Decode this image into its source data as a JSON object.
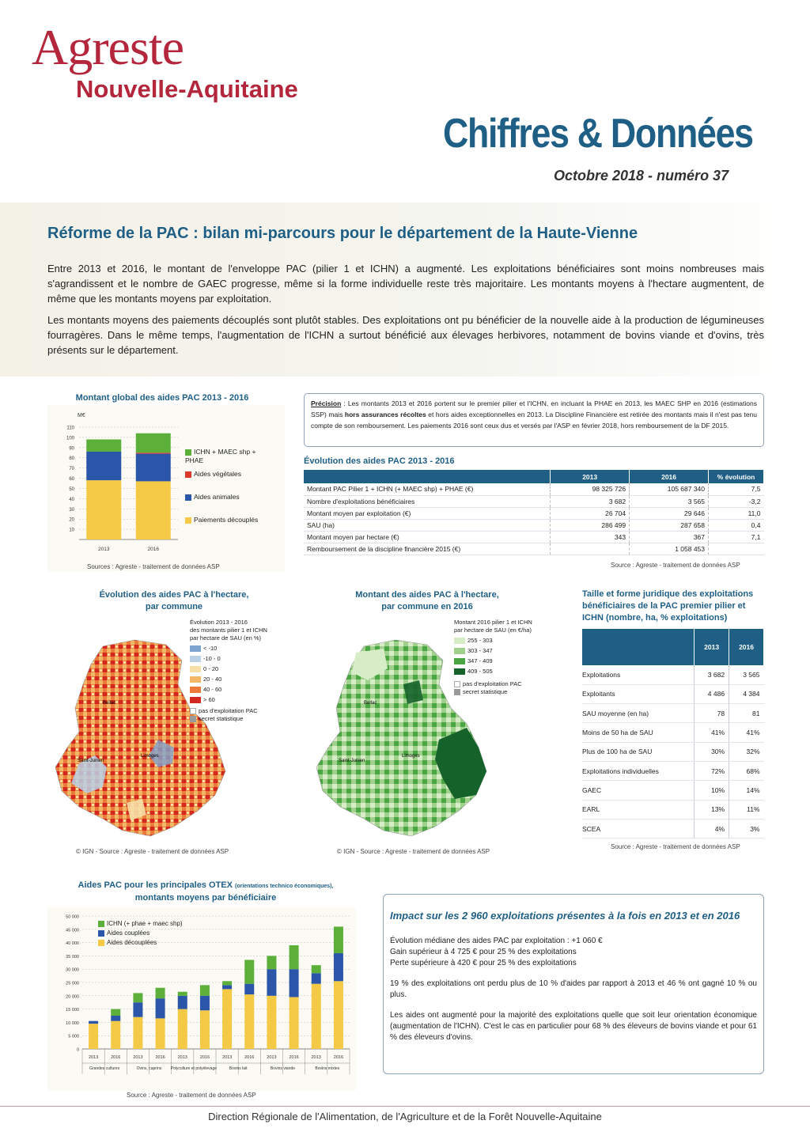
{
  "header": {
    "logo_text": "Agreste",
    "region": "Nouvelle-Aquitaine",
    "series": "Chiffres & Données",
    "issue": "Octobre 2018 - numéro 37"
  },
  "headline": "Réforme de la PAC : bilan mi-parcours pour le département de la Haute-Vienne",
  "intro": [
    "Entre 2013 et 2016, le montant de l'enveloppe PAC (pilier 1 et ICHN) a augmenté. Les exploitations bénéficiaires sont moins nombreuses mais s'agrandissent et le nombre de GAEC progresse, même si la forme individuelle reste très majoritaire. Les montants moyens à l'hectare augmentent, de même que les montants moyens par exploitation.",
    "Les montants moyens des paiements découplés sont plutôt stables. Des exploitations ont pu bénéficier de la nouvelle aide à la production de légumineuses fourragères. Dans le même temps, l'augmentation de l'ICHN a surtout bénéficié aux élevages herbivores, notamment de bovins viande et d'ovins, très présents sur le département."
  ],
  "chart_data": [
    {
      "type": "bar",
      "title": "Montant global des aides PAC 2013 - 2016",
      "ylabel": "M€",
      "ylim": [
        0,
        110
      ],
      "yticks": [
        "110",
        "100",
        "90",
        "80",
        "70",
        "60",
        "50",
        "40",
        "30",
        "20",
        "10"
      ],
      "categories": [
        "2013",
        "2016"
      ],
      "series": [
        {
          "name": "Paiements découplés",
          "values": [
            58,
            57
          ],
          "color": "#f3c945"
        },
        {
          "name": "Aides animales",
          "values": [
            28,
            27
          ],
          "color": "#2a55a8"
        },
        {
          "name": "Aides végétales",
          "values": [
            0,
            1
          ],
          "color": "#d93a2b"
        },
        {
          "name": "ICHN + MAEC shp + PHAE",
          "values": [
            12,
            19
          ],
          "color": "#5cb03a"
        }
      ],
      "legend_order": [
        "ICHN + MAEC shp + PHAE",
        "Aides végétales",
        "Aides animales",
        "Paiements découplés"
      ],
      "source": "Sources : Agreste - traitement de données ASP"
    },
    {
      "type": "bar",
      "title": "Aides PAC pour les principales OTEX",
      "title_small": "(orientations technico économiques),",
      "subtitle": "montants moyens par bénéficiaire",
      "ylim": [
        0,
        50000
      ],
      "yticks": [
        "50 000",
        "45 000",
        "40 000",
        "35 000",
        "30 000",
        "25 000",
        "20 000",
        "15 000",
        "10 000",
        "5 000",
        "0"
      ],
      "categories": [
        "2013",
        "2016",
        "2013",
        "2016",
        "2013",
        "2016",
        "2013",
        "2016",
        "2013",
        "2016",
        "2013",
        "2016"
      ],
      "groups": [
        "Grandes cultures",
        "Ovins, caprins",
        "Polyculture et polyélevage",
        "Bovins lait",
        "Bovins viande",
        "Bovins mixtes"
      ],
      "series": [
        {
          "name": "Aides découplées",
          "values": [
            9500,
            10500,
            12000,
            11500,
            15000,
            14500,
            22500,
            20500,
            20000,
            19500,
            24500,
            25500
          ],
          "color": "#f3c945"
        },
        {
          "name": "Aides couplées",
          "values": [
            1000,
            2000,
            5500,
            7500,
            5000,
            5500,
            1500,
            4000,
            10000,
            10500,
            4000,
            10500
          ],
          "color": "#2a55a8"
        },
        {
          "name": "ICHN (+ phae + maec shp)",
          "values": [
            0,
            2500,
            3500,
            4000,
            1500,
            4000,
            1500,
            9000,
            5000,
            9000,
            3000,
            10000
          ],
          "color": "#5cb03a"
        }
      ],
      "source": "Source : Agreste - traitement de données ASP"
    }
  ],
  "precision": {
    "label": "Précision",
    "text_1": " : Les montants 2013 et 2016 portent sur le premier pilier et l'ICHN, en incluant la PHAE en 2013, les MAEC SHP en 2016 (estimations SSP) mais ",
    "bold": "hors assurances récoltes",
    "text_2": " et hors aides exceptionnelles en 2013. La Discipline Financière est retirée des montants mais il n'est pas tenu compte de son remboursement. Les paiements 2016 sont ceux dus et versés par l'ASP en février 2018, hors remboursement de la DF 2015."
  },
  "evolution": {
    "title": "Évolution des aides PAC 2013 - 2016",
    "headers": [
      "",
      "2013",
      "2016",
      "% évolution"
    ],
    "rows": [
      [
        "Montant PAC Pilier 1 + ICHN (+ MAEC shp) + PHAE (€)",
        "98 325 726",
        "105 687 340",
        "7,5"
      ],
      [
        "Nombre d'exploitations bénéficiaires",
        "3 682",
        "3 565",
        "-3,2"
      ],
      [
        "Montant moyen par exploitation (€)",
        "26 704",
        "29 646",
        "11,0"
      ],
      [
        "SAU (ha)",
        "286 499",
        "287 658",
        "0,4"
      ],
      [
        "Montant moyen par hectare (€)",
        "343",
        "367",
        "7,1"
      ],
      [
        "Remboursement de la discipline financière 2015 (€)",
        "",
        "1 058 453",
        ""
      ]
    ],
    "source": "Source : Agreste - traitement de données ASP"
  },
  "map1": {
    "title_1": "Évolution des aides PAC à l'hectare,",
    "title_2": "par commune",
    "legend_title_1": "Évolution 2013 - 2016",
    "legend_title_2": "des montants pilier 1 et ICHN",
    "legend_title_3": "par hectare de SAU (en %)",
    "classes": [
      {
        "label": "< -10",
        "color": "#7fa3d0"
      },
      {
        "label": "-10 - 0",
        "color": "#b9d0e6"
      },
      {
        "label": "0 - 20",
        "color": "#f7dfa8"
      },
      {
        "label": "20 - 40",
        "color": "#f3b768"
      },
      {
        "label": "40 - 60",
        "color": "#ec7a3a"
      },
      {
        "label": "> 60",
        "color": "#d3281f"
      }
    ],
    "nodata_1": "pas d'exploitation PAC",
    "nodata_2": "secret statistique",
    "city_1": "Bellac",
    "city_2": "Saint-Junien",
    "city_3": "Limoges",
    "source": "© IGN - Source : Agreste - traitement de données ASP"
  },
  "map2": {
    "title_1": "Montant des aides PAC à l'hectare,",
    "title_2": "par commune en 2016",
    "legend_title_1": "Montant 2016 pilier 1 et ICHN",
    "legend_title_2": "par hectare de SAU (en €/ha)",
    "classes": [
      {
        "label": "255 - 303",
        "color": "#d7edc8"
      },
      {
        "label": "303 - 347",
        "color": "#9fd18c"
      },
      {
        "label": "347 - 409",
        "color": "#4aa543"
      },
      {
        "label": "409 - 505",
        "color": "#15622a"
      }
    ],
    "nodata_1": "pas d'exploitation PAC",
    "nodata_2": "secret statistique",
    "city_1": "Bellac",
    "city_2": "Saint-Junien",
    "city_3": "Limoges",
    "source": "© IGN - Source : Agreste - traitement de données ASP"
  },
  "structure": {
    "title_1": "Taille et forme juridique des exploitations",
    "title_2": "bénéficiaires de la PAC premier pilier et",
    "title_3": "ICHN (nombre, ha, % exploitations)",
    "headers": [
      "",
      "2013",
      "2016"
    ],
    "rows": [
      [
        "Exploitations",
        "3 682",
        "3 565"
      ],
      [
        "Exploitants",
        "4 486",
        "4 384"
      ],
      [
        "SAU moyenne (en ha)",
        "78",
        "81"
      ],
      [
        "Moins de 50 ha de SAU",
        "41%",
        "41%"
      ],
      [
        "Plus de 100 ha de SAU",
        "30%",
        "32%"
      ],
      [
        "Exploitations individuelles",
        "72%",
        "68%"
      ],
      [
        "GAEC",
        "10%",
        "14%"
      ],
      [
        "EARL",
        "13%",
        "11%"
      ],
      [
        "SCEA",
        "4%",
        "3%"
      ]
    ],
    "source": "Source : Agreste - traitement de données ASP"
  },
  "impact": {
    "title": "Impact sur les 2 960 exploitations présentes à la fois en 2013 et en 2016",
    "line_1": "Évolution médiane des aides PAC par exploitation : +1 060 €",
    "line_2": "Gain supérieur à 4 725 € pour 25 % des exploitations",
    "line_3": "Perte supérieure à 420 € pour 25 % des exploitations",
    "para_2": "19 % des exploitations ont perdu plus de 10 % d'aides par rapport à 2013 et 46 % ont gagné 10 % ou plus.",
    "para_3": "Les aides ont augmenté pour la majorité des exploitations quelle que soit leur orientation économique (augmentation de l'ICHN). C'est le cas en particulier pour 68 % des éleveurs de bovins viande et pour 61 % des éleveurs d'ovins."
  },
  "footer": "Direction Régionale de l'Alimentation, de l'Agriculture et de la Forêt Nouvelle-Aquitaine"
}
